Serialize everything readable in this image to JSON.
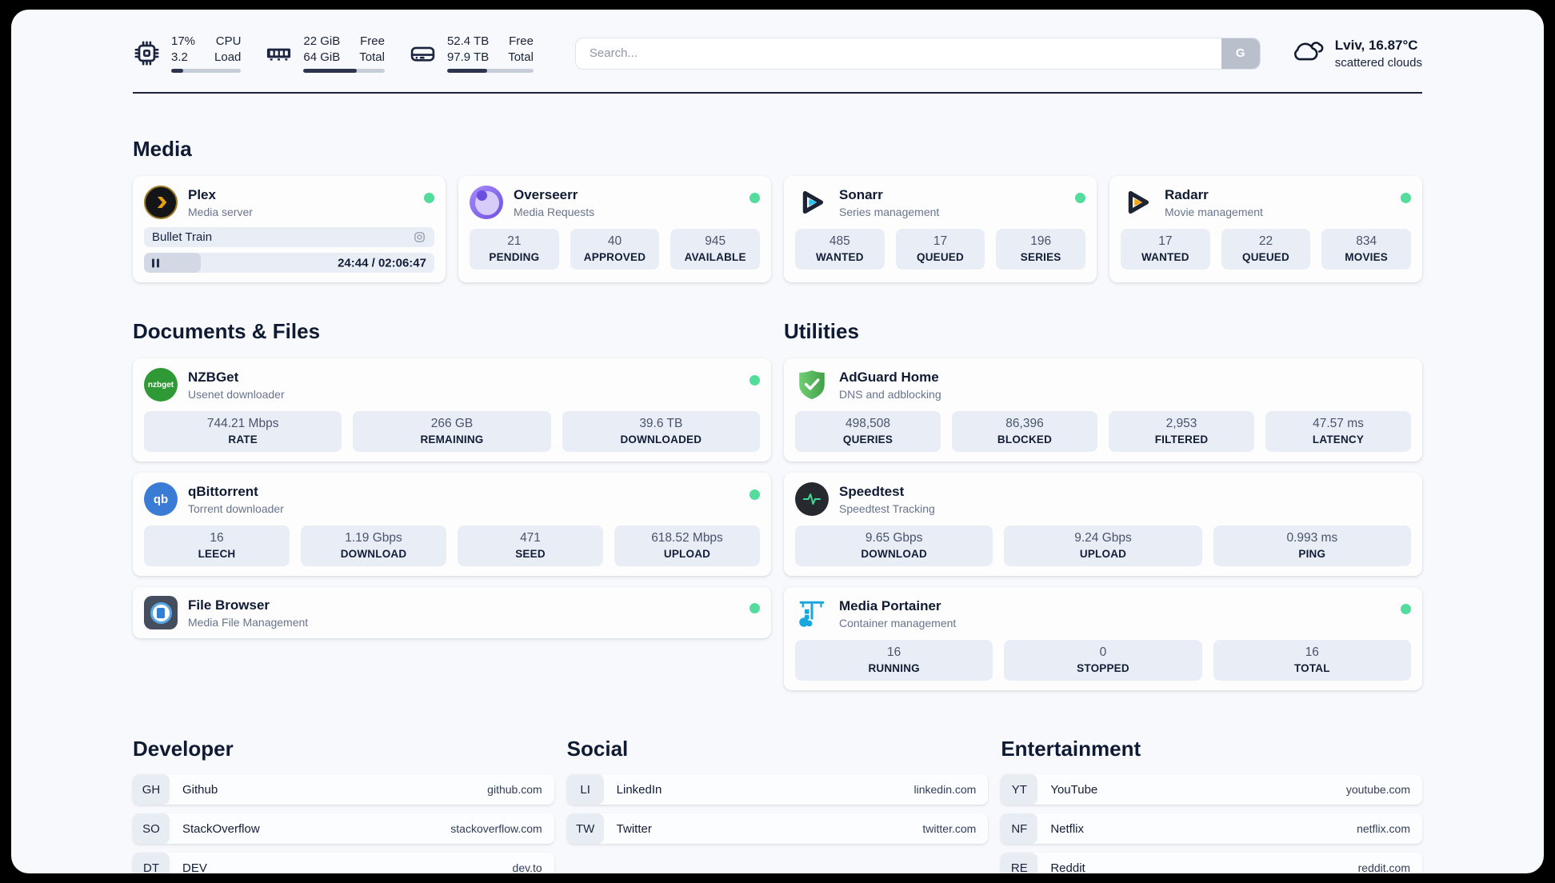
{
  "colors": {
    "page_bg": "#f7f9fc",
    "status_dot_green": "#53dc9b",
    "stat_block_bg": "#e9eef6",
    "divider": "#1d2538",
    "meter_fill": "#2b354d"
  },
  "topbar": {
    "cpu": {
      "icon": "cpu-chip-icon",
      "value_top": "17%",
      "value_bottom": "3.2",
      "label_top": "CPU",
      "label_bottom": "Load",
      "progress_pct": 17
    },
    "memory": {
      "icon": "ram-icon",
      "value_top": "22 GiB",
      "value_bottom": "64 GiB",
      "label_top": "Free",
      "label_bottom": "Total",
      "progress_pct": 66
    },
    "disk": {
      "icon": "hard-drive-icon",
      "value_top": "52.4 TB",
      "value_bottom": "97.9 TB",
      "label_top": "Free",
      "label_bottom": "Total",
      "progress_pct": 46
    },
    "search": {
      "placeholder": "Search...",
      "button": "G"
    },
    "weather": {
      "icon": "cloud-icon",
      "title": "Lviv, 16.87°C",
      "subtitle": "scattered clouds"
    }
  },
  "sections": {
    "media": {
      "title": "Media",
      "plex": {
        "icon": "plex-icon",
        "name": "Plex",
        "desc": "Media server",
        "status": "online",
        "now_playing": "Bullet Train",
        "progress_pct": 19.5,
        "time": "24:44 / 02:06:47"
      },
      "overseerr": {
        "icon": "overseerr-icon",
        "name": "Overseerr",
        "desc": "Media Requests",
        "status": "online",
        "stats": [
          {
            "value": "21",
            "label": "PENDING"
          },
          {
            "value": "40",
            "label": "APPROVED"
          },
          {
            "value": "945",
            "label": "AVAILABLE"
          }
        ]
      },
      "sonarr": {
        "icon": "sonarr-icon",
        "name": "Sonarr",
        "desc": "Series management",
        "status": "online",
        "stats": [
          {
            "value": "485",
            "label": "WANTED"
          },
          {
            "value": "17",
            "label": "QUEUED"
          },
          {
            "value": "196",
            "label": "SERIES"
          }
        ]
      },
      "radarr": {
        "icon": "radarr-icon",
        "name": "Radarr",
        "desc": "Movie management",
        "status": "online",
        "stats": [
          {
            "value": "17",
            "label": "WANTED"
          },
          {
            "value": "22",
            "label": "QUEUED"
          },
          {
            "value": "834",
            "label": "MOVIES"
          }
        ]
      }
    },
    "documents": {
      "title": "Documents & Files",
      "nzbget": {
        "icon": "nzbget-icon",
        "icon_text": "nzbget",
        "name": "NZBGet",
        "desc": "Usenet downloader",
        "status": "online",
        "stats": [
          {
            "value": "744.21 Mbps",
            "label": "RATE"
          },
          {
            "value": "266 GB",
            "label": "REMAINING"
          },
          {
            "value": "39.6 TB",
            "label": "DOWNLOADED"
          }
        ]
      },
      "qbittorrent": {
        "icon": "qbittorrent-icon",
        "icon_text": "qb",
        "name": "qBittorrent",
        "desc": "Torrent downloader",
        "status": "online",
        "stats": [
          {
            "value": "16",
            "label": "LEECH"
          },
          {
            "value": "1.19 Gbps",
            "label": "DOWNLOAD"
          },
          {
            "value": "471",
            "label": "SEED"
          },
          {
            "value": "618.52 Mbps",
            "label": "UPLOAD"
          }
        ]
      },
      "filebrowser": {
        "icon": "filebrowser-icon",
        "name": "File Browser",
        "desc": "Media File Management",
        "status": "online"
      }
    },
    "utilities": {
      "title": "Utilities",
      "adguard": {
        "icon": "adguard-shield-icon",
        "name": "AdGuard Home",
        "desc": "DNS and adblocking",
        "stats": [
          {
            "value": "498,508",
            "label": "QUERIES"
          },
          {
            "value": "86,396",
            "label": "BLOCKED"
          },
          {
            "value": "2,953",
            "label": "FILTERED"
          },
          {
            "value": "47.57 ms",
            "label": "LATENCY"
          }
        ]
      },
      "speedtest": {
        "icon": "speedtest-pulse-icon",
        "name": "Speedtest",
        "desc": "Speedtest Tracking",
        "stats": [
          {
            "value": "9.65 Gbps",
            "label": "DOWNLOAD"
          },
          {
            "value": "9.24 Gbps",
            "label": "UPLOAD"
          },
          {
            "value": "0.993 ms",
            "label": "PING"
          }
        ]
      },
      "portainer": {
        "icon": "portainer-crane-icon",
        "name": "Media Portainer",
        "desc": "Container management",
        "status": "online",
        "stats": [
          {
            "value": "16",
            "label": "RUNNING"
          },
          {
            "value": "0",
            "label": "STOPPED"
          },
          {
            "value": "16",
            "label": "TOTAL"
          }
        ]
      }
    },
    "bookmarks": [
      {
        "title": "Developer",
        "items": [
          {
            "abbr": "GH",
            "name": "Github",
            "domain": "github.com"
          },
          {
            "abbr": "SO",
            "name": "StackOverflow",
            "domain": "stackoverflow.com"
          },
          {
            "abbr": "DT",
            "name": "DEV",
            "domain": "dev.to"
          }
        ]
      },
      {
        "title": "Social",
        "items": [
          {
            "abbr": "LI",
            "name": "LinkedIn",
            "domain": "linkedin.com"
          },
          {
            "abbr": "TW",
            "name": "Twitter",
            "domain": "twitter.com"
          }
        ]
      },
      {
        "title": "Entertainment",
        "items": [
          {
            "abbr": "YT",
            "name": "YouTube",
            "domain": "youtube.com"
          },
          {
            "abbr": "NF",
            "name": "Netflix",
            "domain": "netflix.com"
          },
          {
            "abbr": "RE",
            "name": "Reddit",
            "domain": "reddit.com"
          }
        ]
      }
    ]
  }
}
